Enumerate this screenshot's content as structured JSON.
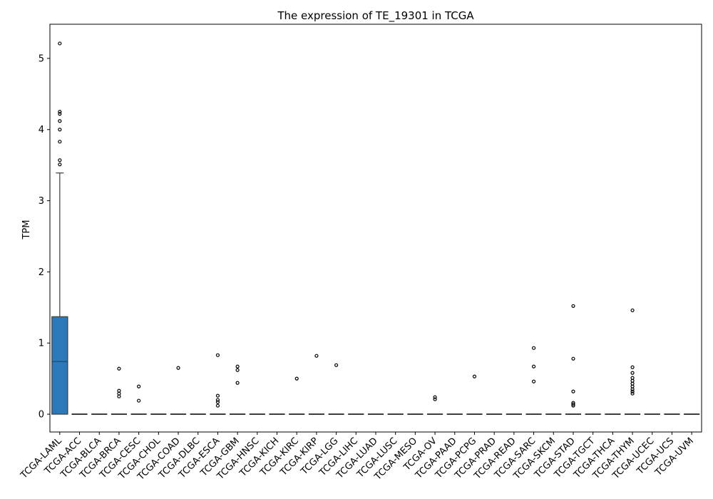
{
  "chart_data": {
    "type": "box",
    "title": "The expression of TE_19301 in TCGA",
    "xlabel": "",
    "ylabel": "TPM",
    "ylim": [
      -0.25,
      5.48
    ],
    "yticks": [
      0,
      1,
      2,
      3,
      4,
      5
    ],
    "grid": false,
    "legend": "none",
    "box_color": "#2d78b8",
    "categories": [
      "TCGA-LAML",
      "TCGA-ACC",
      "TCGA-BLCA",
      "TCGA-BRCA",
      "TCGA-CESC",
      "TCGA-CHOL",
      "TCGA-COAD",
      "TCGA-DLBC",
      "TCGA-ESCA",
      "TCGA-GBM",
      "TCGA-HNSC",
      "TCGA-KICH",
      "TCGA-KIRC",
      "TCGA-KIRP",
      "TCGA-LGG",
      "TCGA-LIHC",
      "TCGA-LUAD",
      "TCGA-LUSC",
      "TCGA-MESO",
      "TCGA-OV",
      "TCGA-PAAD",
      "TCGA-PCPG",
      "TCGA-PRAD",
      "TCGA-READ",
      "TCGA-SARC",
      "TCGA-SKCM",
      "TCGA-STAD",
      "TCGA-TGCT",
      "TCGA-THCA",
      "TCGA-THYM",
      "TCGA-UCEC",
      "TCGA-UCS",
      "TCGA-UVM"
    ],
    "boxes": [
      {
        "q1": 0,
        "median": 0.74,
        "q3": 1.37,
        "whisker_low": 0,
        "whisker_high": 3.39,
        "outliers": [
          5.21,
          4.25,
          4.22,
          4.12,
          4.0,
          3.83,
          3.57,
          3.51
        ]
      },
      {
        "q1": 0,
        "median": 0,
        "q3": 0,
        "whisker_low": 0,
        "whisker_high": 0,
        "outliers": []
      },
      {
        "q1": 0,
        "median": 0,
        "q3": 0,
        "whisker_low": 0,
        "whisker_high": 0,
        "outliers": []
      },
      {
        "q1": 0,
        "median": 0,
        "q3": 0,
        "whisker_low": 0,
        "whisker_high": 0,
        "outliers": [
          0.64,
          0.33,
          0.29,
          0.25
        ]
      },
      {
        "q1": 0,
        "median": 0,
        "q3": 0,
        "whisker_low": 0,
        "whisker_high": 0,
        "outliers": [
          0.39,
          0.19
        ]
      },
      {
        "q1": 0,
        "median": 0,
        "q3": 0,
        "whisker_low": 0,
        "whisker_high": 0,
        "outliers": []
      },
      {
        "q1": 0,
        "median": 0,
        "q3": 0,
        "whisker_low": 0,
        "whisker_high": 0,
        "outliers": [
          0.65
        ]
      },
      {
        "q1": 0,
        "median": 0,
        "q3": 0,
        "whisker_low": 0,
        "whisker_high": 0,
        "outliers": []
      },
      {
        "q1": 0,
        "median": 0,
        "q3": 0,
        "whisker_low": 0,
        "whisker_high": 0,
        "outliers": [
          0.83,
          0.26,
          0.2,
          0.17,
          0.12
        ]
      },
      {
        "q1": 0,
        "median": 0,
        "q3": 0,
        "whisker_low": 0,
        "whisker_high": 0,
        "outliers": [
          0.67,
          0.62,
          0.44
        ]
      },
      {
        "q1": 0,
        "median": 0,
        "q3": 0,
        "whisker_low": 0,
        "whisker_high": 0,
        "outliers": []
      },
      {
        "q1": 0,
        "median": 0,
        "q3": 0,
        "whisker_low": 0,
        "whisker_high": 0,
        "outliers": []
      },
      {
        "q1": 0,
        "median": 0,
        "q3": 0,
        "whisker_low": 0,
        "whisker_high": 0,
        "outliers": [
          0.5
        ]
      },
      {
        "q1": 0,
        "median": 0,
        "q3": 0,
        "whisker_low": 0,
        "whisker_high": 0,
        "outliers": [
          0.82
        ]
      },
      {
        "q1": 0,
        "median": 0,
        "q3": 0,
        "whisker_low": 0,
        "whisker_high": 0,
        "outliers": [
          0.69
        ]
      },
      {
        "q1": 0,
        "median": 0,
        "q3": 0,
        "whisker_low": 0,
        "whisker_high": 0,
        "outliers": []
      },
      {
        "q1": 0,
        "median": 0,
        "q3": 0,
        "whisker_low": 0,
        "whisker_high": 0,
        "outliers": []
      },
      {
        "q1": 0,
        "median": 0,
        "q3": 0,
        "whisker_low": 0,
        "whisker_high": 0,
        "outliers": []
      },
      {
        "q1": 0,
        "median": 0,
        "q3": 0,
        "whisker_low": 0,
        "whisker_high": 0,
        "outliers": []
      },
      {
        "q1": 0,
        "median": 0,
        "q3": 0,
        "whisker_low": 0,
        "whisker_high": 0,
        "outliers": [
          0.24,
          0.21
        ]
      },
      {
        "q1": 0,
        "median": 0,
        "q3": 0,
        "whisker_low": 0,
        "whisker_high": 0,
        "outliers": []
      },
      {
        "q1": 0,
        "median": 0,
        "q3": 0,
        "whisker_low": 0,
        "whisker_high": 0,
        "outliers": [
          0.53
        ]
      },
      {
        "q1": 0,
        "median": 0,
        "q3": 0,
        "whisker_low": 0,
        "whisker_high": 0,
        "outliers": []
      },
      {
        "q1": 0,
        "median": 0,
        "q3": 0,
        "whisker_low": 0,
        "whisker_high": 0,
        "outliers": []
      },
      {
        "q1": 0,
        "median": 0,
        "q3": 0,
        "whisker_low": 0,
        "whisker_high": 0,
        "outliers": [
          0.93,
          0.67,
          0.46
        ]
      },
      {
        "q1": 0,
        "median": 0,
        "q3": 0,
        "whisker_low": 0,
        "whisker_high": 0,
        "outliers": []
      },
      {
        "q1": 0,
        "median": 0,
        "q3": 0,
        "whisker_low": 0,
        "whisker_high": 0,
        "outliers": [
          1.52,
          0.78,
          0.32,
          0.16,
          0.14,
          0.12
        ]
      },
      {
        "q1": 0,
        "median": 0,
        "q3": 0,
        "whisker_low": 0,
        "whisker_high": 0,
        "outliers": []
      },
      {
        "q1": 0,
        "median": 0,
        "q3": 0,
        "whisker_low": 0,
        "whisker_high": 0,
        "outliers": []
      },
      {
        "q1": 0,
        "median": 0,
        "q3": 0,
        "whisker_low": 0,
        "whisker_high": 0,
        "outliers": [
          1.46,
          0.66,
          0.58,
          0.51,
          0.47,
          0.43,
          0.39,
          0.35,
          0.32,
          0.29
        ]
      },
      {
        "q1": 0,
        "median": 0,
        "q3": 0,
        "whisker_low": 0,
        "whisker_high": 0,
        "outliers": []
      },
      {
        "q1": 0,
        "median": 0,
        "q3": 0,
        "whisker_low": 0,
        "whisker_high": 0,
        "outliers": []
      },
      {
        "q1": 0,
        "median": 0,
        "q3": 0,
        "whisker_low": 0,
        "whisker_high": 0,
        "outliers": []
      }
    ]
  }
}
